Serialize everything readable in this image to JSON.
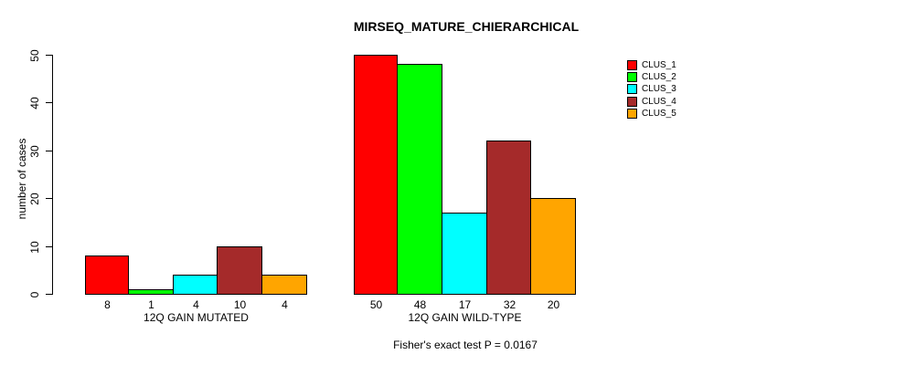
{
  "chart_data": {
    "type": "bar",
    "title": "MIRSEQ_MATURE_CHIERARCHICAL",
    "ylabel": "number of cases",
    "xlabel": "",
    "ylim": [
      0,
      50
    ],
    "yticks": [
      0,
      10,
      20,
      30,
      40,
      50
    ],
    "grid": false,
    "legend_position": "top-right",
    "categories": [
      "12Q GAIN MUTATED",
      "12Q GAIN WILD-TYPE"
    ],
    "series": [
      {
        "name": "CLUS_1",
        "color": "#ff0000",
        "values": [
          8,
          50
        ]
      },
      {
        "name": "CLUS_2",
        "color": "#00ff00",
        "values": [
          1,
          48
        ]
      },
      {
        "name": "CLUS_3",
        "color": "#00ffff",
        "values": [
          4,
          17
        ]
      },
      {
        "name": "CLUS_4",
        "color": "#a52a2a",
        "values": [
          10,
          32
        ]
      },
      {
        "name": "CLUS_5",
        "color": "#ffa500",
        "values": [
          4,
          20
        ]
      }
    ],
    "annotation": "Fisher's exact test P = 0.0167"
  }
}
